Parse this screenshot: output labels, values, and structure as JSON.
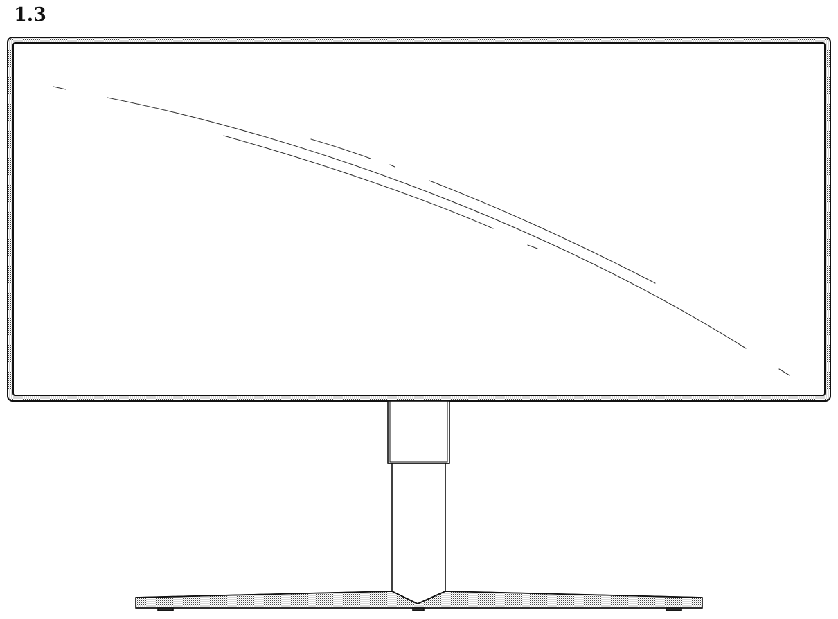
{
  "figure": {
    "label": "1.3"
  },
  "drawing": {
    "subject": "monitor",
    "view": "front"
  }
}
